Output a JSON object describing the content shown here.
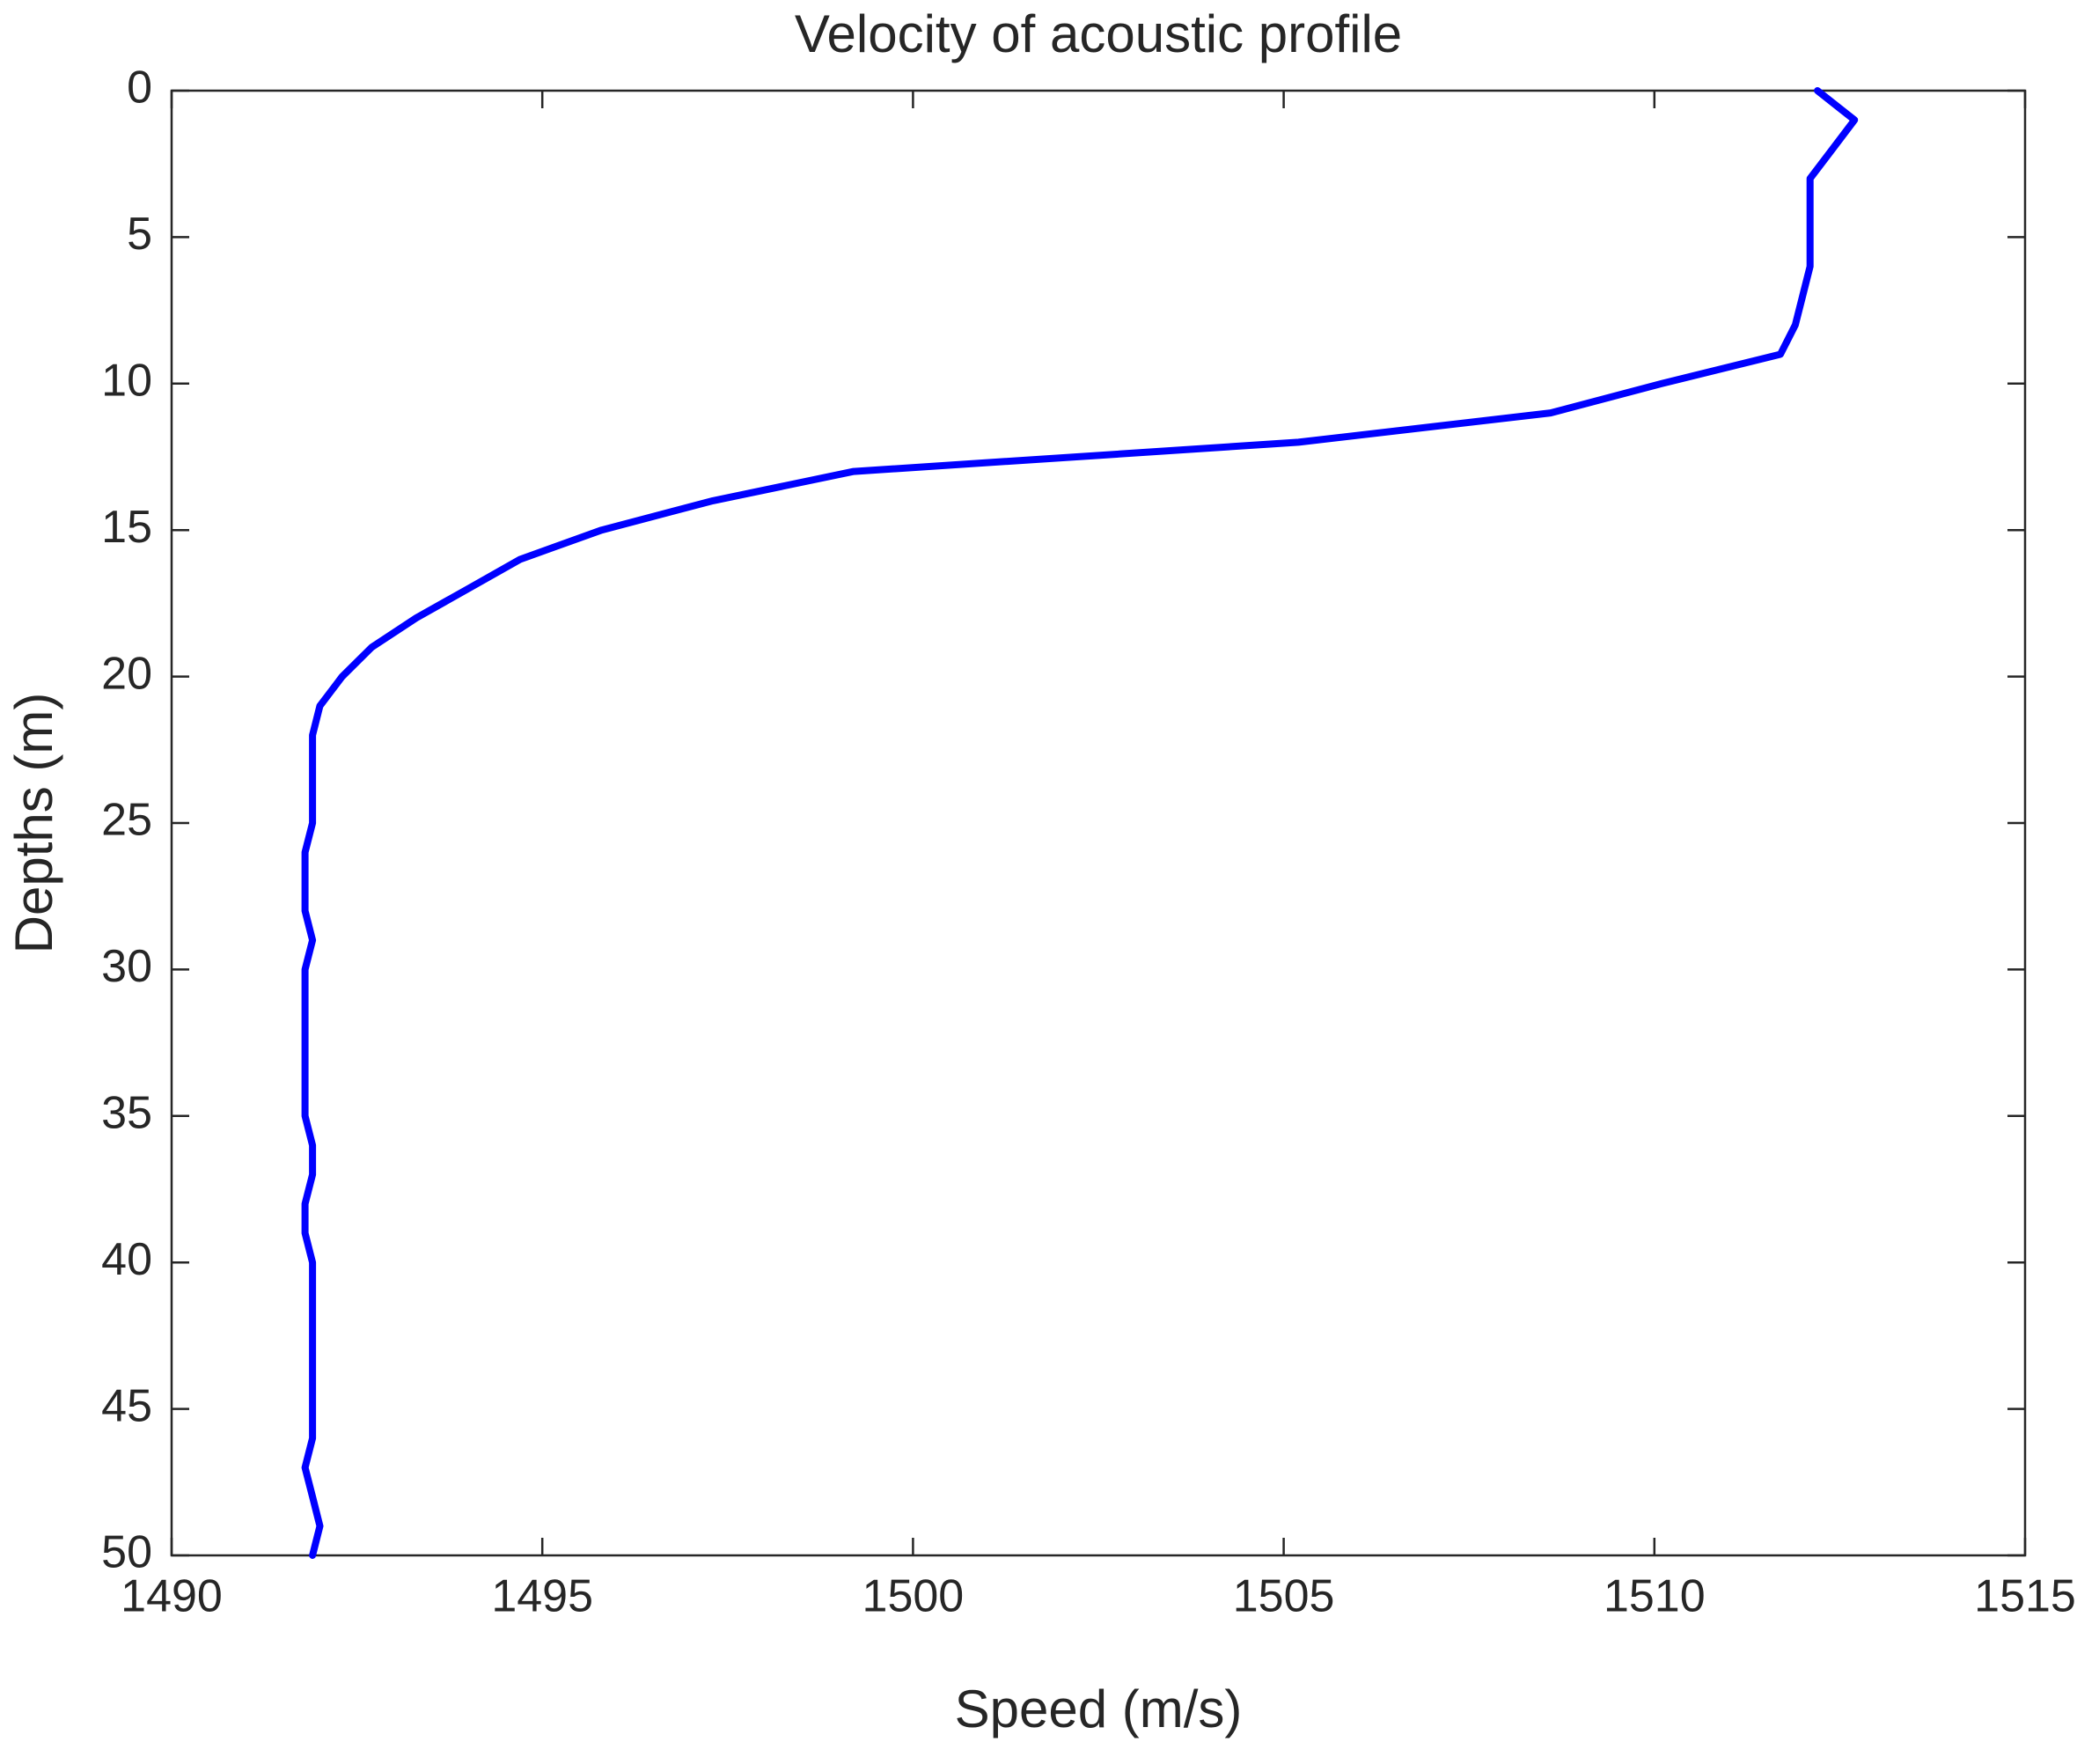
{
  "chart_data": {
    "type": "line",
    "title": "Velocity of acoustic profile",
    "x_label": "Speed (m/s)",
    "y_label": "Depths (m)",
    "x": [
      1512.2,
      1512.7,
      1512.4,
      1512.1,
      1512.1,
      1512.1,
      1512.1,
      1512.0,
      1511.9,
      1511.7,
      1510.1,
      1508.6,
      1505.2,
      1499.2,
      1497.3,
      1495.8,
      1494.7,
      1494.0,
      1493.3,
      1492.7,
      1492.3,
      1492.0,
      1491.9,
      1491.9,
      1491.9,
      1491.9,
      1491.8,
      1491.8,
      1491.8,
      1491.9,
      1491.8,
      1491.8,
      1491.8,
      1491.8,
      1491.8,
      1491.8,
      1491.9,
      1491.9,
      1491.8,
      1491.8,
      1491.9,
      1491.9,
      1491.9,
      1491.9,
      1491.9,
      1491.9,
      1491.9,
      1491.8,
      1491.9,
      1492.0,
      1491.9
    ],
    "y": [
      0,
      1,
      2,
      3,
      4,
      5,
      6,
      7,
      8,
      9,
      10,
      11,
      12,
      13,
      14,
      15,
      16,
      17,
      18,
      19,
      20,
      21,
      22,
      23,
      24,
      25,
      26,
      27,
      28,
      29,
      30,
      31,
      32,
      33,
      34,
      35,
      36,
      37,
      38,
      39,
      40,
      41,
      42,
      43,
      44,
      45,
      46,
      47,
      48,
      49,
      50
    ],
    "color": "#0000ff",
    "xlim": [
      1490,
      1515
    ],
    "xticks": [
      1490,
      1495,
      1500,
      1505,
      1510,
      1515
    ],
    "ylim": [
      0,
      50
    ],
    "yticks": [
      0,
      5,
      10,
      15,
      20,
      25,
      30,
      35,
      40,
      45,
      50
    ],
    "y_reversed": true,
    "grid": false
  }
}
